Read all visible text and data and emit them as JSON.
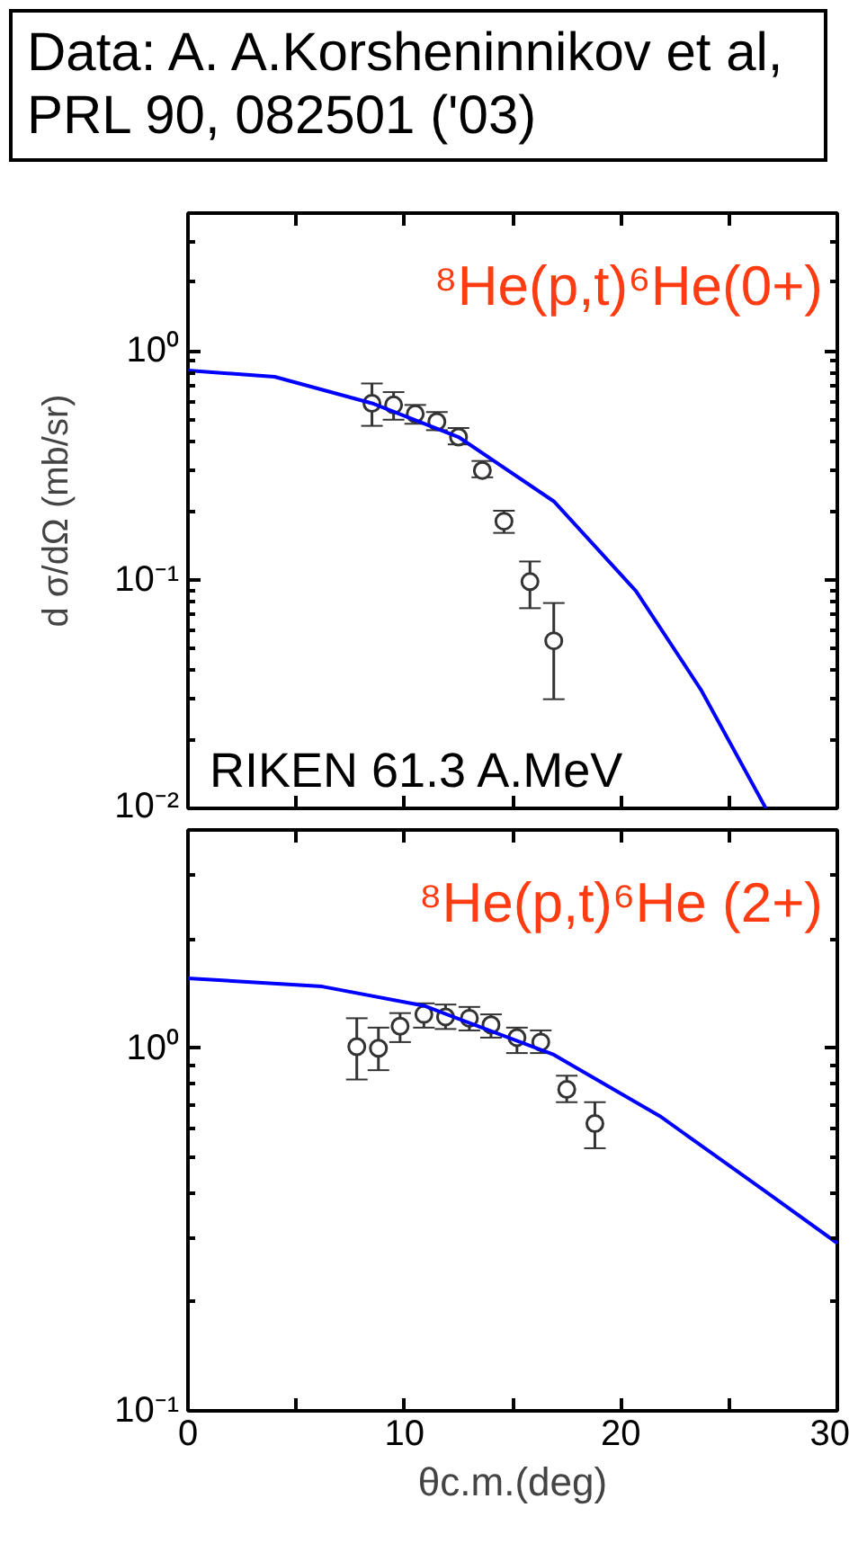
{
  "chart_data": [
    {
      "type": "scatter",
      "title": "Data: A. A.Korsheninnikov et al, PRL 90, 082501 ('03)",
      "ylabel": "d σ/dΩ (mb/sr)",
      "annotations": [
        "⁸He(p,t)⁶He(0+)",
        "RIKEN 61.3 A.MeV"
      ],
      "log": "y",
      "grid": false,
      "tick_labels": "y",
      "xlim": [
        0,
        30
      ],
      "xticks": [
        {
          "value": 0,
          "label": null
        },
        {
          "value": 5,
          "label": null
        },
        {
          "value": 10,
          "label": null
        },
        {
          "value": 15,
          "label": null
        },
        {
          "value": 20,
          "label": null
        },
        {
          "value": 25,
          "label": null
        },
        {
          "value": 30,
          "label": null
        }
      ],
      "ylim": [
        0.01,
        4
      ],
      "yticks": [
        {
          "value": 0.01,
          "label": "10⁻²"
        },
        {
          "value": 0.1,
          "label": "10⁻¹"
        },
        {
          "value": 1,
          "label": "10⁰"
        }
      ],
      "series": [
        {
          "marker": "circle",
          "color": "#333333",
          "x": [
            8.5,
            9.5,
            10.5,
            11.5,
            12.5,
            13.6,
            14.6,
            15.8,
            16.9
          ],
          "values": [
            0.59,
            0.58,
            0.53,
            0.49,
            0.42,
            0.3,
            0.18,
            0.098,
            0.054
          ],
          "errors": [
            [
              0.47,
              0.72
            ],
            [
              0.5,
              0.66
            ],
            [
              0.48,
              0.58
            ],
            [
              0.45,
              0.54
            ],
            [
              0.39,
              0.46
            ],
            [
              0.28,
              0.33
            ],
            [
              0.16,
              0.2
            ],
            [
              0.075,
              0.12
            ],
            [
              0.03,
              0.079
            ]
          ]
        },
        {
          "type": "line",
          "color": "#0000ff",
          "x": [
            0,
            4.0,
            8.5,
            12.5,
            16.9,
            20.7,
            23.7,
            26.7
          ],
          "values": [
            0.82,
            0.77,
            0.59,
            0.42,
            0.22,
            0.089,
            0.033,
            0.01
          ]
        }
      ]
    },
    {
      "type": "scatter",
      "xlabel": "θc.m.(deg)",
      "annotations": [
        "⁸He(p,t)⁶He (2+)"
      ],
      "log": "y",
      "grid": false,
      "xlim": [
        0,
        30
      ],
      "xticks": [
        0,
        {
          "value": 5,
          "label": null
        },
        10,
        {
          "value": 15,
          "label": null
        },
        20,
        {
          "value": 25,
          "label": null
        },
        30
      ],
      "ylim": [
        0.1,
        4
      ],
      "yticks": [
        {
          "value": 0.1,
          "label": "10⁻¹"
        },
        {
          "value": 1,
          "label": "10⁰"
        }
      ],
      "series": [
        {
          "marker": "circle",
          "color": "#333333",
          "x": [
            7.8,
            8.8,
            9.8,
            10.9,
            11.9,
            13.0,
            14.0,
            15.2,
            16.3,
            17.5,
            18.8
          ],
          "values": [
            1.01,
            1.0,
            1.15,
            1.24,
            1.22,
            1.21,
            1.16,
            1.07,
            1.04,
            0.77,
            0.62
          ],
          "errors": [
            [
              0.82,
              1.21
            ],
            [
              0.87,
              1.14
            ],
            [
              1.04,
              1.25
            ],
            [
              1.14,
              1.33
            ],
            [
              1.13,
              1.32
            ],
            [
              1.12,
              1.3
            ],
            [
              1.07,
              1.24
            ],
            [
              0.97,
              1.14
            ],
            [
              0.97,
              1.12
            ],
            [
              0.71,
              0.84
            ],
            [
              0.53,
              0.71
            ]
          ]
        },
        {
          "type": "line",
          "color": "#0000ff",
          "x": [
            0,
            6.2,
            10.9,
            16.9,
            21.8,
            26.5,
            30
          ],
          "values": [
            1.56,
            1.48,
            1.31,
            0.96,
            0.65,
            0.41,
            0.29
          ]
        }
      ]
    }
  ]
}
